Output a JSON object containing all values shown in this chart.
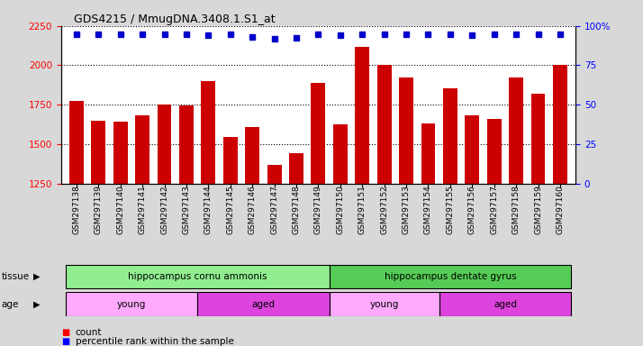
{
  "title": "GDS4215 / MmugDNA.3408.1.S1_at",
  "samples": [
    "GSM297138",
    "GSM297139",
    "GSM297140",
    "GSM297141",
    "GSM297142",
    "GSM297143",
    "GSM297144",
    "GSM297145",
    "GSM297146",
    "GSM297147",
    "GSM297148",
    "GSM297149",
    "GSM297150",
    "GSM297151",
    "GSM297152",
    "GSM297153",
    "GSM297154",
    "GSM297155",
    "GSM297156",
    "GSM297157",
    "GSM297158",
    "GSM297159",
    "GSM297160"
  ],
  "counts": [
    1775,
    1650,
    1645,
    1680,
    1750,
    1745,
    1900,
    1545,
    1610,
    1370,
    1440,
    1890,
    1625,
    2115,
    2000,
    1920,
    1630,
    1855,
    1680,
    1660,
    1920,
    1820,
    2005
  ],
  "percentile_ranks": [
    98,
    98,
    98,
    98,
    98,
    98,
    95,
    98,
    92,
    88,
    90,
    98,
    95,
    98,
    98,
    98,
    98,
    98,
    95,
    98,
    98,
    98,
    98
  ],
  "bar_color": "#cc0000",
  "dot_color": "#0000cc",
  "ylim_left": [
    1250,
    2250
  ],
  "ylim_right": [
    0,
    100
  ],
  "yticks_left": [
    1250,
    1500,
    1750,
    2000,
    2250
  ],
  "yticks_right": [
    0,
    25,
    50,
    75,
    100
  ],
  "tissue_groups": [
    {
      "label": "hippocampus cornu ammonis",
      "start": 0,
      "end": 12,
      "color": "#90ee90"
    },
    {
      "label": "hippocampus dentate gyrus",
      "start": 12,
      "end": 23,
      "color": "#55cc55"
    }
  ],
  "age_groups": [
    {
      "label": "young",
      "start": 0,
      "end": 6,
      "color": "#ffaaff"
    },
    {
      "label": "aged",
      "start": 6,
      "end": 12,
      "color": "#dd44dd"
    },
    {
      "label": "young",
      "start": 12,
      "end": 17,
      "color": "#ffaaff"
    },
    {
      "label": "aged",
      "start": 17,
      "end": 23,
      "color": "#dd44dd"
    }
  ],
  "tissue_label": "tissue",
  "age_label": "age",
  "legend_count_label": "count",
  "legend_pct_label": "percentile rank within the sample",
  "bg_color": "#d8d8d8",
  "plot_bg": "#ffffff",
  "grid_color": "#000000"
}
